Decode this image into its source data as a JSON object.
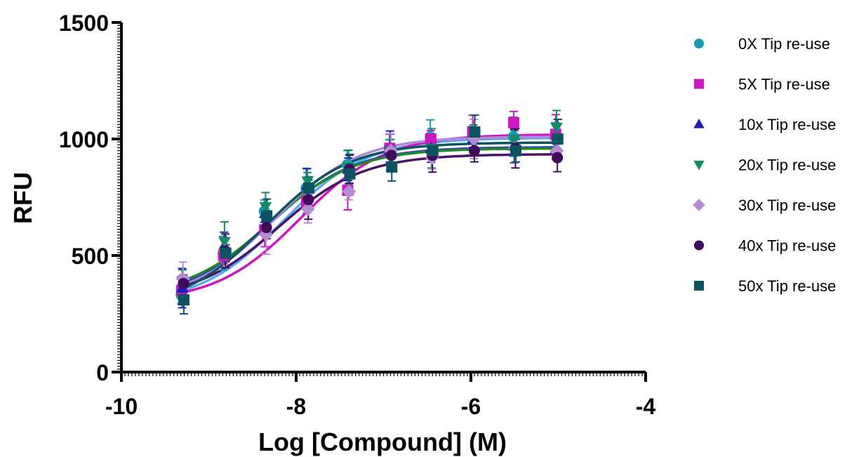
{
  "chart_data": {
    "type": "scatter",
    "title": "",
    "xlabel": "Log [Compound] (M)",
    "ylabel": "RFU",
    "xlim": [
      -10,
      -4
    ],
    "ylim": [
      0,
      1500
    ],
    "xticks": [
      -10,
      -8,
      -6,
      -4
    ],
    "yticks": [
      0,
      500,
      1000,
      1500
    ],
    "x_tick_labels": [
      "-10",
      "-8",
      "-6",
      "-4"
    ],
    "y_tick_labels": [
      "0",
      "500",
      "1000",
      "1500"
    ],
    "grid": false,
    "legend_position": "right",
    "x": [
      -9.3,
      -8.82,
      -8.35,
      -7.87,
      -7.4,
      -6.92,
      -6.45,
      -5.97,
      -5.5,
      -5.02
    ],
    "series": [
      {
        "name": "0X Tip re-use",
        "marker": "circle",
        "color": "#1a9bb5",
        "curve_color": "#5aa8f0",
        "values": [
          330,
          510,
          690,
          790,
          890,
          960,
          1010,
          1005,
          1010,
          1010
        ],
        "fit": {
          "bottom": 290,
          "top": 1005,
          "logec50": -8.15,
          "hill": 0.9
        }
      },
      {
        "name": "5X Tip re-use",
        "marker": "square",
        "color": "#cc16c2",
        "curve_color": "#cc16c2",
        "values": [
          350,
          500,
          610,
          730,
          780,
          960,
          1000,
          1030,
          1070,
          1020
        ],
        "fit": {
          "bottom": 300,
          "top": 1020,
          "logec50": -7.95,
          "hill": 0.9
        }
      },
      {
        "name": "10x Tip re-use",
        "marker": "triangle-up",
        "color": "#1d1eb8",
        "curve_color": "#3a3ad0",
        "values": [
          360,
          540,
          680,
          800,
          870,
          950,
          960,
          1000,
          970,
          960
        ],
        "fit": {
          "bottom": 310,
          "top": 965,
          "logec50": -8.3,
          "hill": 0.9
        }
      },
      {
        "name": "20x Tip re-use",
        "marker": "triangle-down",
        "color": "#128b67",
        "curve_color": "#1f8a1f",
        "values": [
          390,
          560,
          710,
          820,
          880,
          950,
          960,
          1000,
          1000,
          1050
        ],
        "fit": {
          "bottom": 320,
          "top": 960,
          "logec50": -8.3,
          "hill": 0.9
        }
      },
      {
        "name": "30x Tip re-use",
        "marker": "diamond",
        "color": "#b68cd0",
        "curve_color": "#b08ad8",
        "values": [
          400,
          520,
          590,
          700,
          775,
          950,
          920,
          1000,
          960,
          950
        ],
        "fit": {
          "bottom": 300,
          "top": 1010,
          "logec50": -8.25,
          "hill": 0.9
        }
      },
      {
        "name": "40x Tip re-use",
        "marker": "circle",
        "color": "#3f0b58",
        "curve_color": "#4a1268",
        "values": [
          380,
          520,
          620,
          740,
          870,
          930,
          930,
          950,
          960,
          920
        ],
        "fit": {
          "bottom": 310,
          "top": 935,
          "logec50": -8.2,
          "hill": 0.9
        }
      },
      {
        "name": "50x Tip re-use",
        "marker": "square",
        "color": "#0d5462",
        "curve_color": "#0d5462",
        "values": [
          310,
          510,
          670,
          790,
          850,
          880,
          950,
          1030,
          950,
          1000
        ],
        "fit": {
          "bottom": 270,
          "top": 985,
          "logec50": -8.35,
          "hill": 0.9
        }
      }
    ]
  }
}
